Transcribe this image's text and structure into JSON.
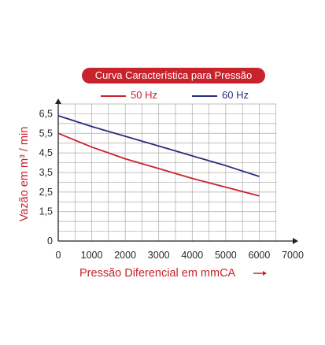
{
  "title": "Curva Característica para Pressão",
  "colors": {
    "series_50": "#c8222c",
    "series_60": "#2b2e7a",
    "title_bg": "#c8222c",
    "grid": "#aaaaaa"
  },
  "chart_data": {
    "type": "line",
    "title": "Curva Característica para Pressão",
    "xlabel": "Pressão Diferencial em mmCA",
    "ylabel": "Vazão em m³ / min",
    "xlim": [
      0,
      7000
    ],
    "ylim": [
      0,
      7
    ],
    "x_ticks": [
      "0",
      "1000",
      "2000",
      "3000",
      "4000",
      "5000",
      "6000",
      "7000"
    ],
    "y_ticks": [
      "0",
      "1,5",
      "2,5",
      "3,5",
      "4,5",
      "5,5",
      "6,5"
    ],
    "grid": true,
    "legend_position": "top",
    "series": [
      {
        "name": "50 Hz",
        "x": [
          0,
          1000,
          2000,
          3000,
          4000,
          5000,
          6000
        ],
        "y": [
          5.5,
          4.8,
          4.2,
          3.7,
          3.2,
          2.75,
          2.3
        ]
      },
      {
        "name": "60 Hz",
        "x": [
          0,
          1000,
          2000,
          3000,
          4000,
          5000,
          6000
        ],
        "y": [
          6.4,
          5.85,
          5.35,
          4.85,
          4.35,
          3.85,
          3.3
        ]
      }
    ]
  }
}
